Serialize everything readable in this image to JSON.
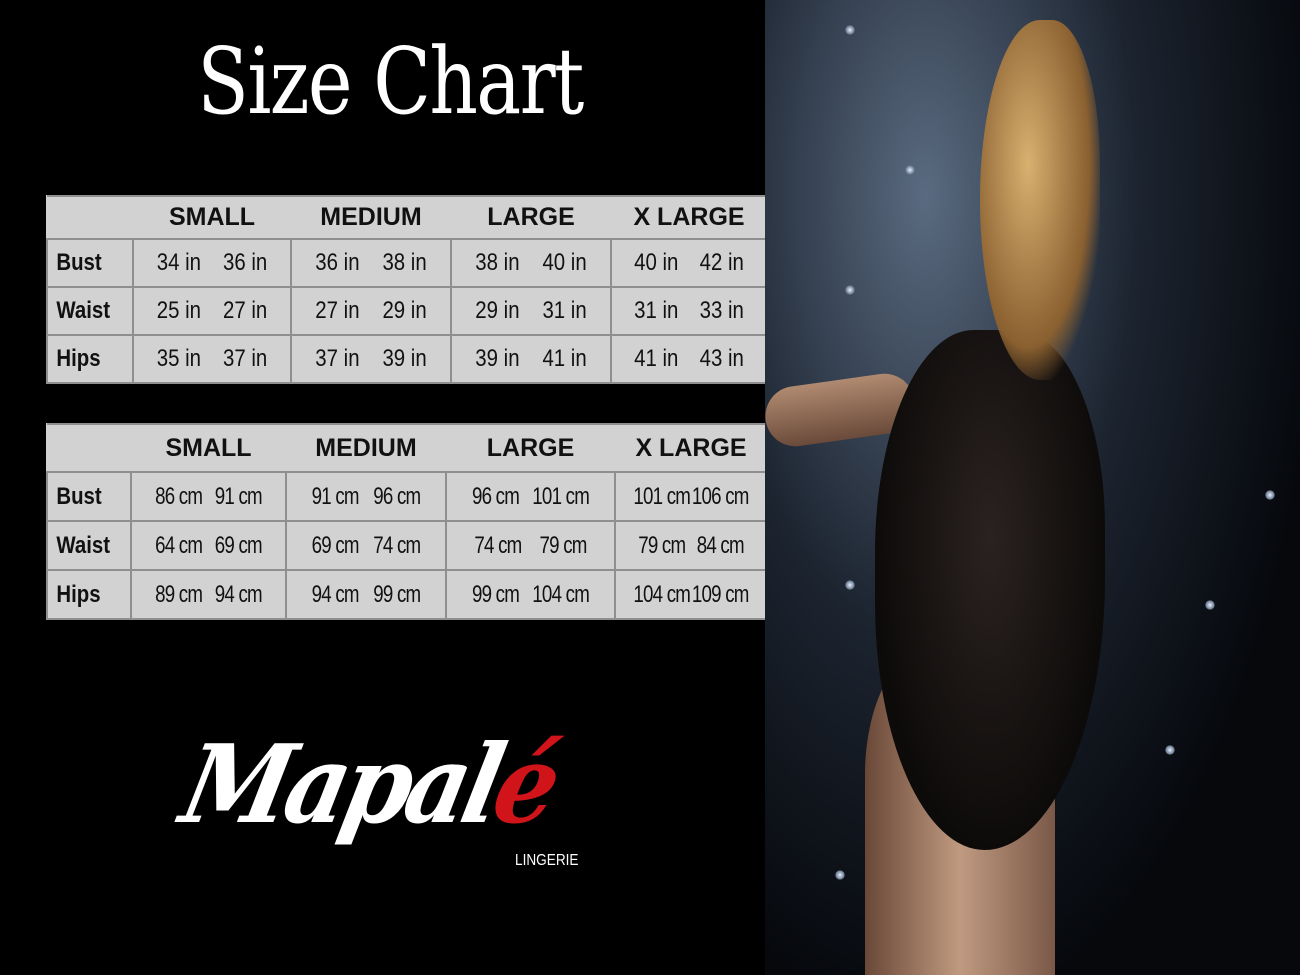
{
  "title": "Size Chart",
  "tables": [
    {
      "sizes": [
        "SMALL",
        "MEDIUM",
        "LARGE",
        "X LARGE"
      ],
      "rows": [
        {
          "label": "Bust",
          "values": [
            [
              "34 in",
              "36 in"
            ],
            [
              "36 in",
              "38 in"
            ],
            [
              "38 in",
              "40 in"
            ],
            [
              "40 in",
              "42 in"
            ]
          ]
        },
        {
          "label": "Waist",
          "values": [
            [
              "25 in",
              "27 in"
            ],
            [
              "27 in",
              "29 in"
            ],
            [
              "29 in",
              "31 in"
            ],
            [
              "31 in",
              "33 in"
            ]
          ]
        },
        {
          "label": "Hips",
          "values": [
            [
              "35 in",
              "37 in"
            ],
            [
              "37 in",
              "39 in"
            ],
            [
              "39 in",
              "41 in"
            ],
            [
              "41 in",
              "43 in"
            ]
          ]
        }
      ]
    },
    {
      "sizes": [
        "SMALL",
        "MEDIUM",
        "LARGE",
        "X LARGE"
      ],
      "rows": [
        {
          "label": "Bust",
          "values": [
            [
              "86 cm",
              "91 cm"
            ],
            [
              "91 cm",
              "96 cm"
            ],
            [
              "96 cm",
              "101 cm"
            ],
            [
              "101 cm",
              "106 cm"
            ]
          ]
        },
        {
          "label": "Waist",
          "values": [
            [
              "64 cm",
              "69 cm"
            ],
            [
              "69 cm",
              "74 cm"
            ],
            [
              "74 cm",
              "79 cm"
            ],
            [
              "79 cm",
              "84 cm"
            ]
          ]
        },
        {
          "label": "Hips",
          "values": [
            [
              "89 cm",
              "94 cm"
            ],
            [
              "94 cm",
              "99 cm"
            ],
            [
              "99 cm",
              "104 cm"
            ],
            [
              "104 cm",
              "109 cm"
            ]
          ]
        }
      ]
    }
  ],
  "logo": {
    "main": "Mapal",
    "accent": "é",
    "sub": "LINGERIE",
    "accent_color": "#d0141a"
  },
  "colors": {
    "background": "#000000",
    "table_bg": "#d2d2d2",
    "table_border": "#8f8f8f"
  }
}
